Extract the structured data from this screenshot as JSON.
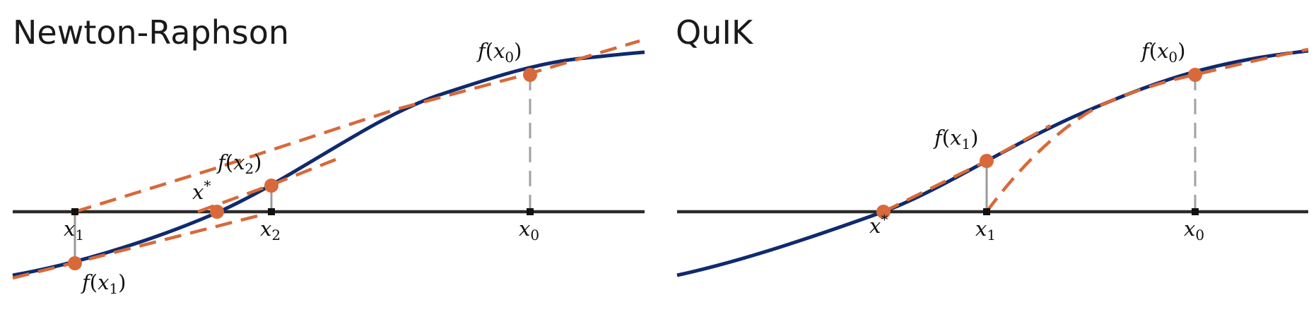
{
  "panels": [
    {
      "title": "Newton-Raphson",
      "labels": {
        "f_x0": {
          "f": "f",
          "open": "(",
          "var": "x",
          "sub": "0",
          "close": ")"
        },
        "f_x1": {
          "f": "f",
          "open": "(",
          "var": "x",
          "sub": "1",
          "close": ")"
        },
        "f_x2": {
          "f": "f",
          "open": "(",
          "var": "x",
          "sub": "2",
          "close": ")"
        },
        "xstar": {
          "var": "x",
          "sup": "*"
        },
        "x0": {
          "var": "x",
          "sub": "0"
        },
        "x1": {
          "var": "x",
          "sub": "1"
        },
        "x2": {
          "var": "x",
          "sub": "2"
        }
      }
    },
    {
      "title": "QuIK",
      "labels": {
        "f_x0": {
          "f": "f",
          "open": "(",
          "var": "x",
          "sub": "0",
          "close": ")"
        },
        "f_x1": {
          "f": "f",
          "open": "(",
          "var": "x",
          "sub": "1",
          "close": ")"
        },
        "xstar": {
          "var": "x",
          "sup": "*"
        },
        "x0": {
          "var": "x",
          "sub": "0"
        },
        "x1": {
          "var": "x",
          "sub": "1"
        }
      }
    }
  ],
  "colors": {
    "curve": "#0f2a6e",
    "tangent": "#d8693a",
    "point": "#d8693a",
    "axis": "#2b2b2b",
    "dropline": "#9a9a9a"
  }
}
